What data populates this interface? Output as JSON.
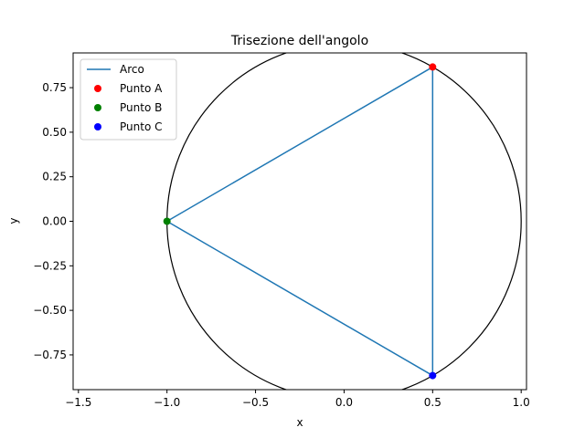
{
  "chart_data": {
    "type": "line",
    "title": "Trisezione dell'angolo",
    "xlabel": "x",
    "ylabel": "y",
    "xlim": [
      -1.53,
      1.03
    ],
    "ylim": [
      -0.945,
      0.945
    ],
    "x_ticks": [
      -1.5,
      -1.0,
      -0.5,
      0.0,
      0.5,
      1.0
    ],
    "x_tick_labels": [
      "−1.5",
      "−1.0",
      "−0.5",
      "0.0",
      "0.5",
      "1.0"
    ],
    "y_ticks": [
      0.75,
      0.5,
      0.25,
      0.0,
      -0.25,
      -0.5,
      -0.75
    ],
    "y_tick_labels": [
      "0.75",
      "0.50",
      "0.25",
      "0.00",
      "−0.25",
      "−0.50",
      "−0.75"
    ],
    "grid": false,
    "legend_position": "upper-left",
    "circle": {
      "center": [
        0,
        0
      ],
      "radius": 1,
      "color": "#000000"
    },
    "series": [
      {
        "name": "Arco",
        "kind": "line",
        "color": "#1f77b4",
        "x": [
          0.5,
          -1.0,
          0.5,
          0.5
        ],
        "y": [
          0.866,
          0.0,
          -0.866,
          0.866
        ]
      },
      {
        "name": "Punto A",
        "kind": "marker",
        "color": "#ff0000",
        "x": [
          0.5
        ],
        "y": [
          0.866
        ]
      },
      {
        "name": "Punto B",
        "kind": "marker",
        "color": "#008000",
        "x": [
          -1.0
        ],
        "y": [
          0.0
        ]
      },
      {
        "name": "Punto C",
        "kind": "marker",
        "color": "#0000ff",
        "x": [
          0.5
        ],
        "y": [
          -0.866
        ]
      }
    ]
  }
}
